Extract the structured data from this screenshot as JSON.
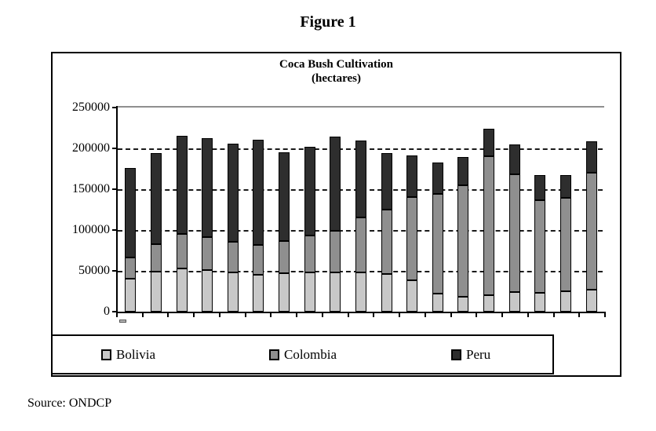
{
  "figure_title": "Figure 1",
  "source_note": "Source: ONDCP",
  "chart_data": {
    "type": "bar",
    "stacked": true,
    "title": "Coca Bush Cultivation",
    "subtitle": "(hectares)",
    "ylabel": "",
    "xlabel": "",
    "x_axis_labels_visible": false,
    "bar_count": 19,
    "ylim": [
      0,
      250000
    ],
    "yticks": [
      0,
      50000,
      100000,
      150000,
      200000,
      250000
    ],
    "gridlines": "horizontal dashed at 50000-200000, solid gray at 250000",
    "legend_position": "bottom",
    "series": [
      {
        "name": "Bolivia",
        "color": "#c8c8c8",
        "values": [
          40500,
          49000,
          53000,
          50500,
          48000,
          45500,
          47000,
          48000,
          48500,
          48000,
          46000,
          38000,
          21800,
          18000,
          19900,
          24400,
          23200,
          24600,
          26500
        ]
      },
      {
        "name": "Colombia",
        "color": "#8f8f8f",
        "values": [
          26000,
          33500,
          42500,
          40000,
          37500,
          37000,
          39500,
          45000,
          51000,
          67000,
          79000,
          101800,
          122500,
          137000,
          169800,
          144400,
          113800,
          114100,
          143500
        ]
      },
      {
        "name": "Peru",
        "color": "#2e2e2e",
        "values": [
          109500,
          111500,
          120500,
          121000,
          120500,
          129000,
          109000,
          108500,
          115000,
          94500,
          69000,
          51000,
          38700,
          35000,
          34000,
          36600,
          31200,
          27500,
          38500
        ]
      }
    ]
  }
}
